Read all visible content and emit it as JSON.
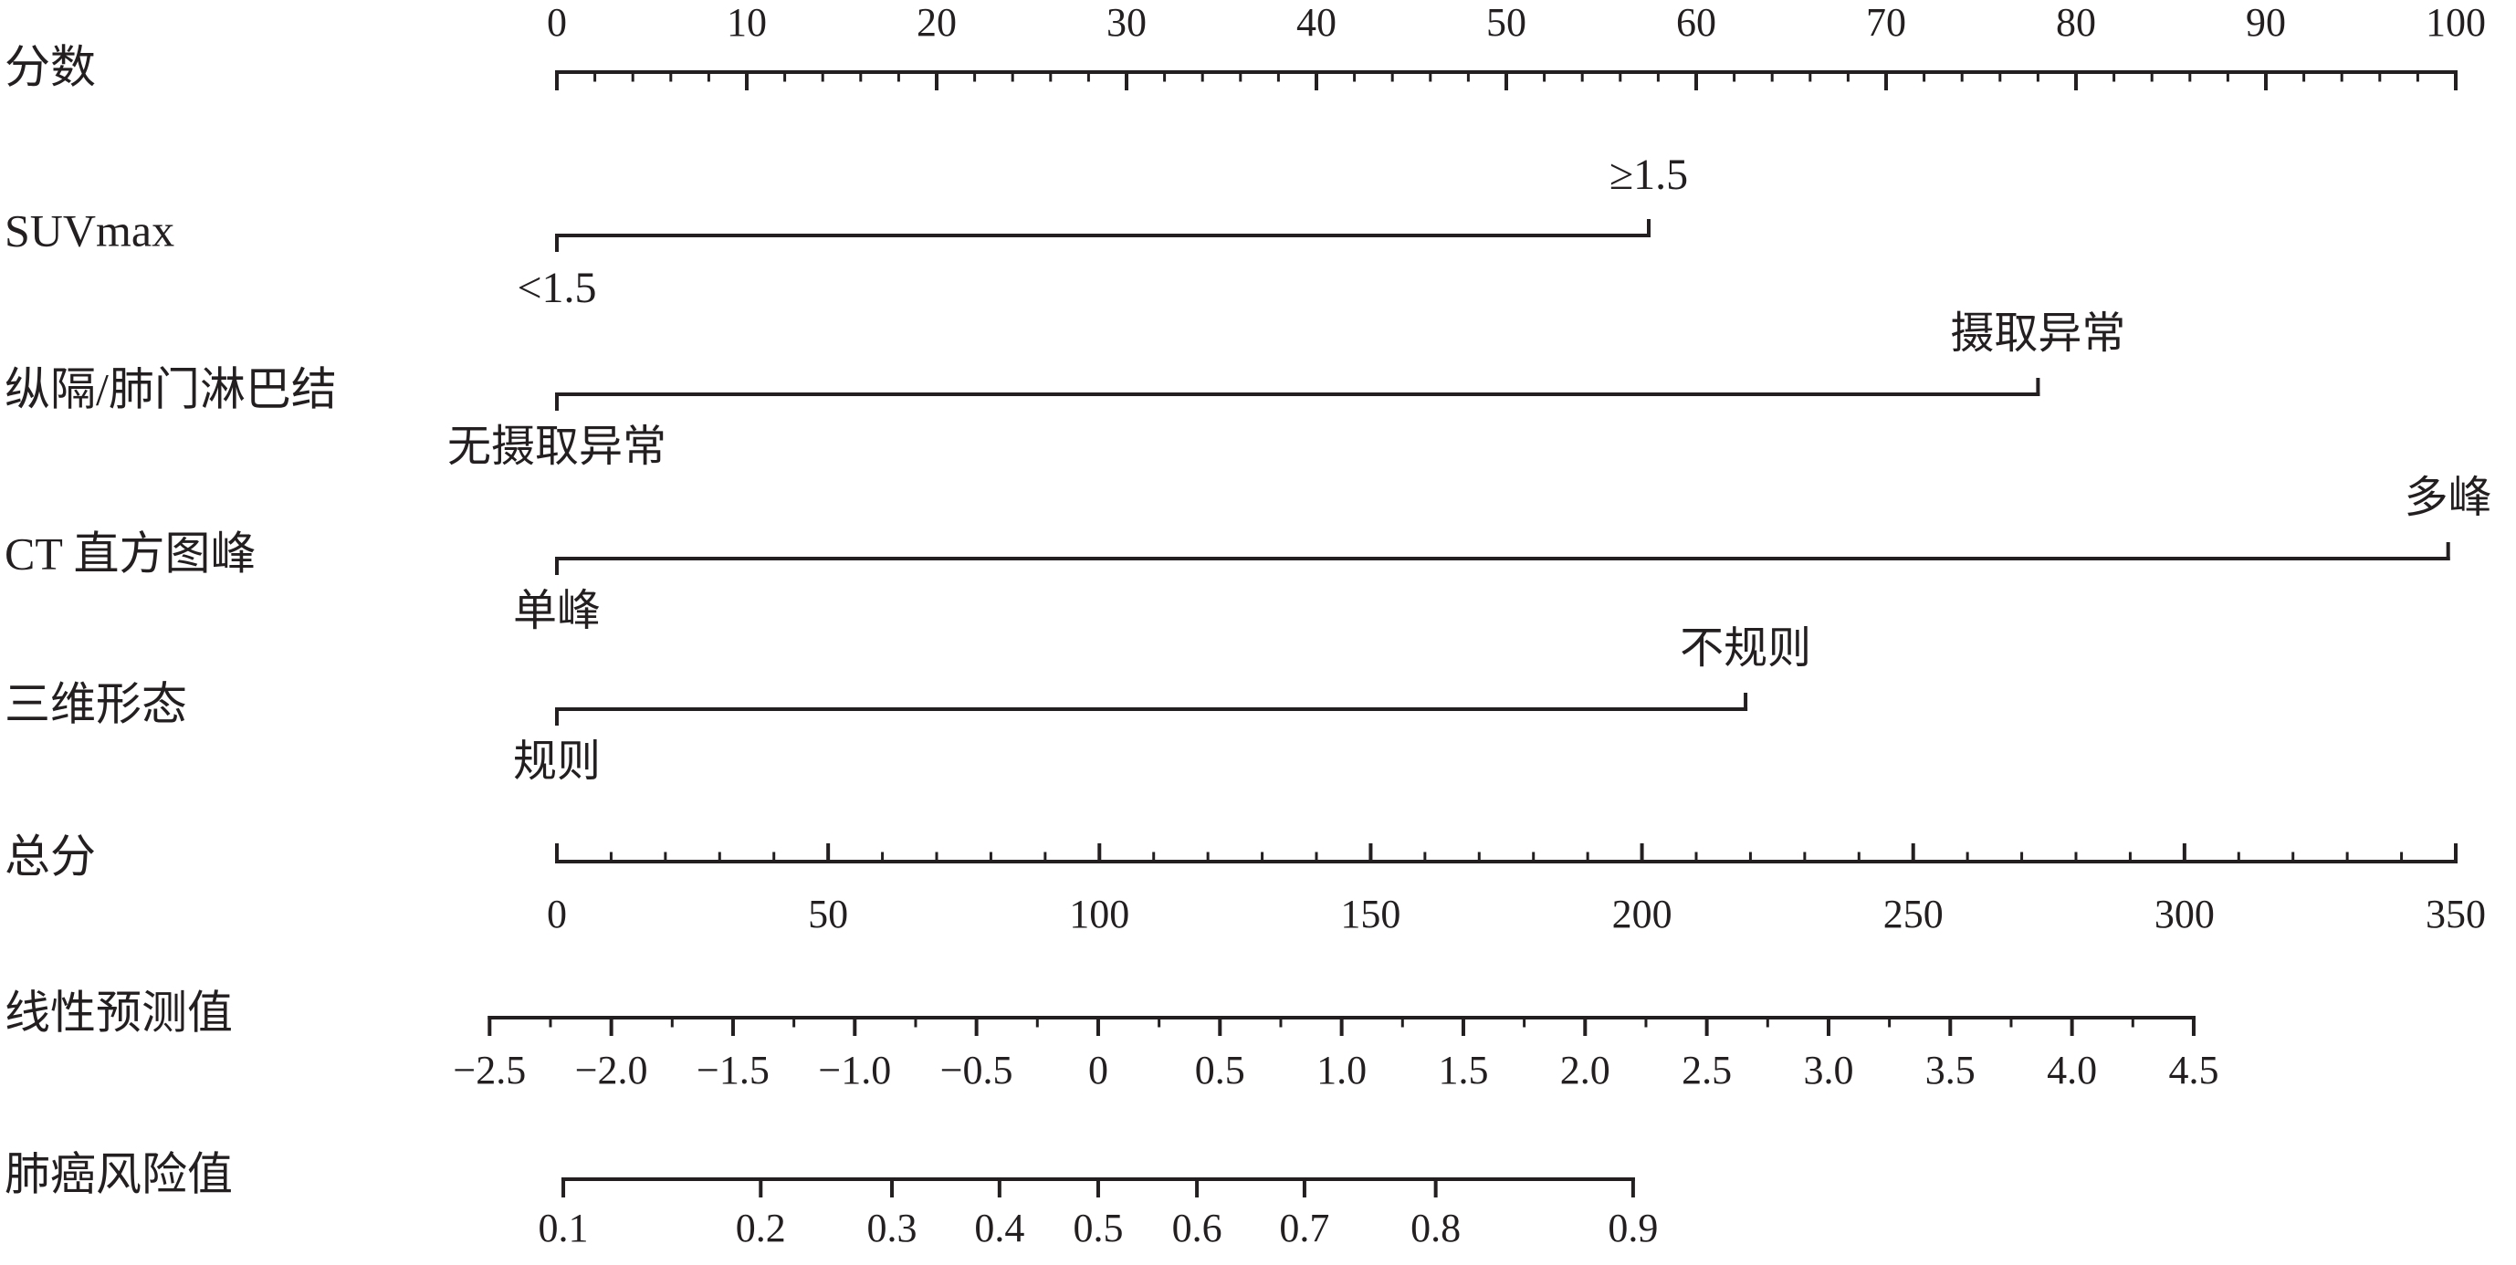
{
  "chart_data": {
    "type": "nomogram",
    "points_axis": {
      "label": "分数",
      "xlim": [
        0,
        100
      ],
      "xticks": [
        0,
        10,
        20,
        30,
        40,
        50,
        60,
        70,
        80,
        90,
        100
      ],
      "minor_step": 2
    },
    "variables": [
      {
        "label": "SUVmax",
        "levels": [
          "<1.5",
          "≥1.5"
        ],
        "points": [
          0,
          57.5
        ]
      },
      {
        "label": "纵隔/肺门淋巴结",
        "levels": [
          "无摄取异常",
          "摄取异常"
        ],
        "points": [
          0,
          78
        ]
      },
      {
        "label": "CT 直方图峰",
        "levels": [
          "单峰",
          "多峰"
        ],
        "points": [
          0,
          99.6
        ]
      },
      {
        "label": "三维形态",
        "levels": [
          "规则",
          "不规则"
        ],
        "points": [
          0,
          62.6
        ]
      }
    ],
    "total_axis": {
      "label": "总分",
      "xlim": [
        0,
        350
      ],
      "xticks": [
        0,
        50,
        100,
        150,
        200,
        250,
        300,
        350
      ],
      "minor_step": 10
    },
    "linear_predictor": {
      "label": "线性预测值",
      "xlim": [
        -2.5,
        4.5
      ],
      "points_at_xlim": [
        -12.4,
        301.7
      ],
      "xticks": [
        {
          "value": -2.5,
          "label": "−2.5"
        },
        {
          "value": -2.0,
          "label": "−2.0"
        },
        {
          "value": -1.5,
          "label": "−1.5"
        },
        {
          "value": -1.0,
          "label": "−1.0"
        },
        {
          "value": -0.5,
          "label": "−0.5"
        },
        0,
        0.5,
        {
          "value": 1.0,
          "label": "1.0"
        },
        1.5,
        {
          "value": 2.0,
          "label": "2.0"
        },
        2.5,
        {
          "value": 3.0,
          "label": "3.0"
        },
        3.5,
        {
          "value": 4.0,
          "label": "4.0"
        },
        4.5
      ],
      "minor_step": 0.25
    },
    "risk": {
      "label": "肺癌风险值",
      "xlim": [
        0.1,
        0.9
      ],
      "xticks": [
        0.1,
        0.2,
        0.3,
        0.4,
        0.5,
        0.6,
        0.7,
        0.8,
        0.9
      ]
    }
  }
}
